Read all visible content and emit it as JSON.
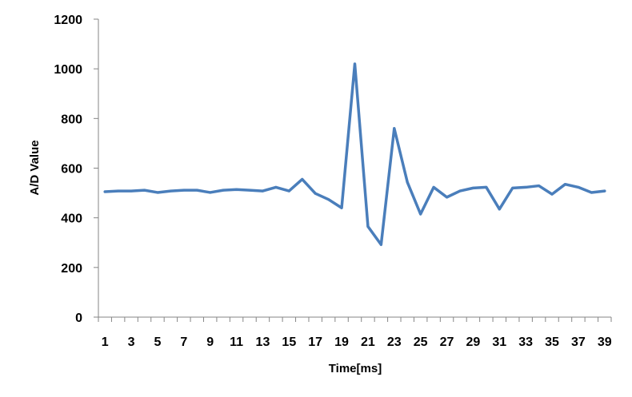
{
  "chart_data": {
    "type": "line",
    "title": "",
    "xlabel": "Time[ms]",
    "ylabel": "A/D Value",
    "ylim": [
      0,
      1200
    ],
    "yticks": [
      0,
      200,
      400,
      600,
      800,
      1000,
      1200
    ],
    "x": [
      1,
      2,
      3,
      4,
      5,
      6,
      7,
      8,
      9,
      10,
      11,
      12,
      13,
      14,
      15,
      16,
      17,
      18,
      19,
      20,
      21,
      22,
      23,
      24,
      25,
      26,
      27,
      28,
      29,
      30,
      31,
      32,
      33,
      34,
      35,
      36,
      37,
      38,
      39
    ],
    "xtick_labels": [
      "1",
      "3",
      "5",
      "7",
      "9",
      "11",
      "13",
      "15",
      "17",
      "19",
      "21",
      "23",
      "25",
      "27",
      "29",
      "31",
      "33",
      "35",
      "37",
      "39"
    ],
    "series": [
      {
        "values": [
          505,
          508,
          508,
          511,
          502,
          508,
          511,
          511,
          502,
          511,
          514,
          511,
          508,
          523,
          508,
          555,
          498,
          474,
          440,
          1020,
          365,
          292,
          760,
          543,
          415,
          523,
          483,
          508,
          520,
          523,
          435,
          520,
          523,
          529,
          495,
          535,
          523,
          502,
          508
        ],
        "color": "#4a7ebb"
      }
    ],
    "grid": false,
    "legend": "none"
  }
}
